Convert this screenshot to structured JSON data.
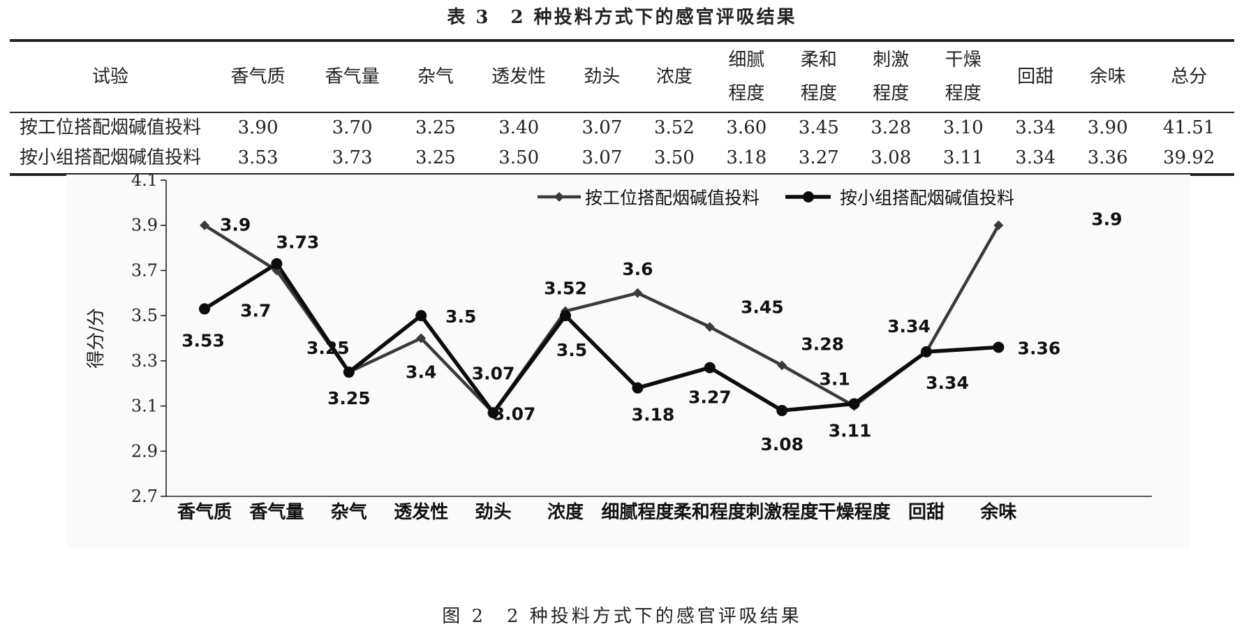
{
  "table": {
    "caption": "表 3　2 种投料方式下的感官评吸结果",
    "headers": [
      {
        "line1": "试验",
        "line2": ""
      },
      {
        "line1": "香气质",
        "line2": ""
      },
      {
        "line1": "香气量",
        "line2": ""
      },
      {
        "line1": "杂气",
        "line2": ""
      },
      {
        "line1": "透发性",
        "line2": ""
      },
      {
        "line1": "劲头",
        "line2": ""
      },
      {
        "line1": "浓度",
        "line2": ""
      },
      {
        "line1": "细腻",
        "line2": "程度"
      },
      {
        "line1": "柔和",
        "line2": "程度"
      },
      {
        "line1": "刺激",
        "line2": "程度"
      },
      {
        "line1": "干燥",
        "line2": "程度"
      },
      {
        "line1": "回甜",
        "line2": ""
      },
      {
        "line1": "余味",
        "line2": ""
      },
      {
        "line1": "总分",
        "line2": ""
      }
    ],
    "rows": [
      [
        "按工位搭配烟碱值投料",
        "3.90",
        "3.70",
        "3.25",
        "3.40",
        "3.07",
        "3.52",
        "3.60",
        "3.45",
        "3.28",
        "3.10",
        "3.34",
        "3.90",
        "41.51"
      ],
      [
        "按小组搭配烟碱值投料",
        "3.53",
        "3.73",
        "3.25",
        "3.50",
        "3.07",
        "3.50",
        "3.18",
        "3.27",
        "3.08",
        "3.11",
        "3.34",
        "3.36",
        "39.92"
      ]
    ]
  },
  "chart_data": {
    "type": "line",
    "ylabel": "得分/分",
    "ylim": [
      2.7,
      4.1
    ],
    "yticks": [
      "4.1",
      "3.9",
      "3.7",
      "3.5",
      "3.3",
      "3.1",
      "2.9",
      "2.7"
    ],
    "grid": false,
    "legend_position": "top-right",
    "categories": [
      "香气质",
      "香气量",
      "杂气",
      "透发性",
      "劲头",
      "浓度",
      "细腻程度",
      "柔和程度",
      "刺激程度",
      "干燥程度",
      "回甜",
      "余味"
    ],
    "series": [
      {
        "name": "按工位搭配烟碱值投料",
        "marker": "diamond",
        "values": [
          3.9,
          3.7,
          3.25,
          3.4,
          3.07,
          3.52,
          3.6,
          3.45,
          3.28,
          3.1,
          3.34,
          3.9
        ],
        "labels": [
          "3.9",
          "3.7",
          "3.25",
          "3.4",
          "3.07",
          "3.52",
          "3.6",
          "3.45",
          "3.28",
          "3.1",
          "3.34",
          "3.9"
        ]
      },
      {
        "name": "按小组搭配烟碱值投料",
        "marker": "circle",
        "values": [
          3.53,
          3.73,
          3.25,
          3.5,
          3.07,
          3.5,
          3.18,
          3.27,
          3.08,
          3.11,
          3.34,
          3.36
        ],
        "labels": [
          "3.53",
          "3.73",
          "3.25",
          "3.5",
          "3.07",
          "3.5",
          "3.18",
          "3.27",
          "3.08",
          "3.11",
          "3.34",
          "3.36"
        ]
      }
    ]
  },
  "figure": {
    "caption": "图 2　2 种投料方式下的感官评吸结果"
  }
}
